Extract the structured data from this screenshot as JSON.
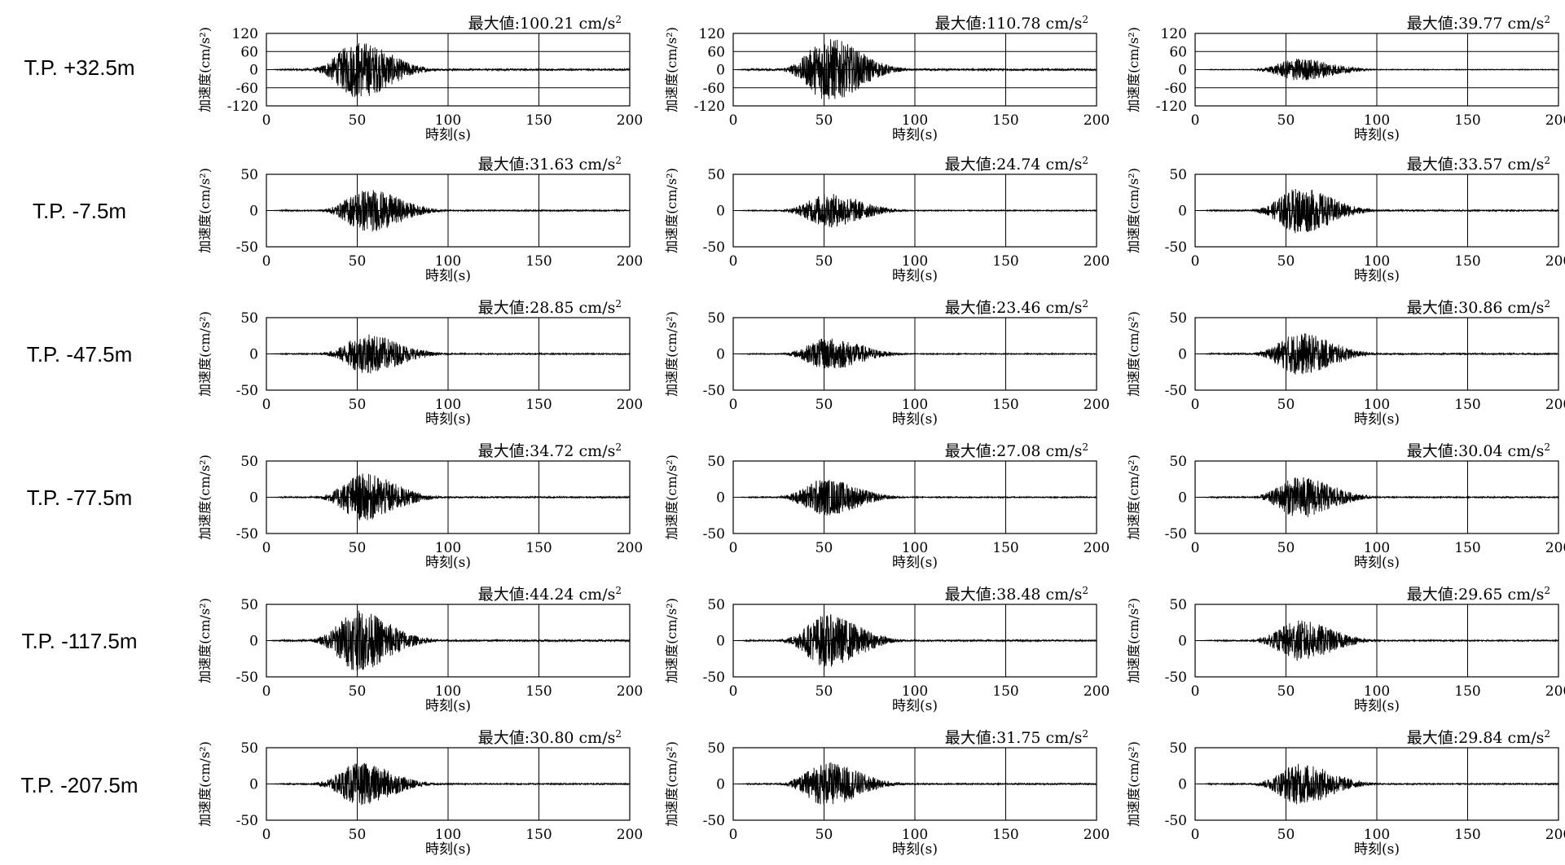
{
  "depth_labels": [
    "T.P. +32.5m",
    "T.P. -7.5m",
    "T.P. -47.5m",
    "T.P. -77.5m",
    "T.P. -117.5m",
    "T.P. -207.5m"
  ],
  "peak_prefix": "最大値:",
  "peak_unit": "cm/s",
  "peak_unit_sup": "2",
  "chart_data": {
    "type": "line",
    "xlabel": "時刻(s)",
    "ylabel": "加速度(cm/s²)",
    "xlim": [
      0,
      200
    ],
    "xticks": [
      0,
      50,
      100,
      150,
      200
    ],
    "grid": true,
    "series_color": "#000000",
    "rows": [
      {
        "label": "T.P. +32.5m",
        "ylim": [
          -120,
          120
        ],
        "yticks": [
          -120,
          -60,
          0,
          60,
          120
        ],
        "peaks": [
          {
            "max": "100.21",
            "center": 50
          },
          {
            "max": "110.78",
            "center": 52
          },
          {
            "max": "39.77",
            "center": 57
          }
        ]
      },
      {
        "label": "T.P. -7.5m",
        "ylim": [
          -50,
          50
        ],
        "yticks": [
          -50,
          0,
          50
        ],
        "peaks": [
          {
            "max": "31.63",
            "center": 55
          },
          {
            "max": "24.74",
            "center": 52
          },
          {
            "max": "33.57",
            "center": 57
          }
        ]
      },
      {
        "label": "T.P. -47.5m",
        "ylim": [
          -50,
          50
        ],
        "yticks": [
          -50,
          0,
          50
        ],
        "peaks": [
          {
            "max": "28.85",
            "center": 55
          },
          {
            "max": "23.46",
            "center": 52
          },
          {
            "max": "30.86",
            "center": 57
          }
        ]
      },
      {
        "label": "T.P. -77.5m",
        "ylim": [
          -50,
          50
        ],
        "yticks": [
          -50,
          0,
          50
        ],
        "peaks": [
          {
            "max": "34.72",
            "center": 53
          },
          {
            "max": "27.08",
            "center": 50
          },
          {
            "max": "30.04",
            "center": 57
          }
        ]
      },
      {
        "label": "T.P. -117.5m",
        "ylim": [
          -50,
          50
        ],
        "yticks": [
          -50,
          0,
          50
        ],
        "peaks": [
          {
            "max": "44.24",
            "center": 50
          },
          {
            "max": "38.48",
            "center": 51
          },
          {
            "max": "29.65",
            "center": 57
          }
        ]
      },
      {
        "label": "T.P. -207.5m",
        "ylim": [
          -50,
          50
        ],
        "yticks": [
          -50,
          0,
          50
        ],
        "peaks": [
          {
            "max": "30.80",
            "center": 51
          },
          {
            "max": "31.75",
            "center": 51
          },
          {
            "max": "29.84",
            "center": 57
          }
        ]
      }
    ]
  }
}
